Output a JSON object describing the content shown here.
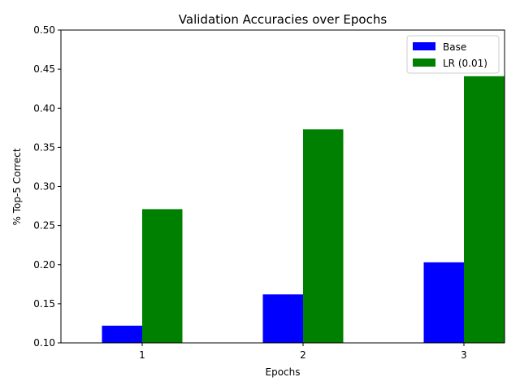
{
  "chart_data": {
    "type": "bar",
    "title": "Validation Accuracies over Epochs",
    "xlabel": "Epochs",
    "ylabel": "% Top-5 Correct",
    "categories": [
      "1",
      "2",
      "3"
    ],
    "series": [
      {
        "name": "Base",
        "values": [
          0.122,
          0.162,
          0.203
        ],
        "color": "#0000ff"
      },
      {
        "name": "LR (0.01)",
        "values": [
          0.271,
          0.373,
          0.441
        ],
        "color": "#008000"
      }
    ],
    "ylim": [
      0.1,
      0.5
    ],
    "yticks": [
      "0.10",
      "0.15",
      "0.20",
      "0.25",
      "0.30",
      "0.35",
      "0.40",
      "0.45",
      "0.50"
    ],
    "grid": false,
    "legend_position": "top-right"
  }
}
